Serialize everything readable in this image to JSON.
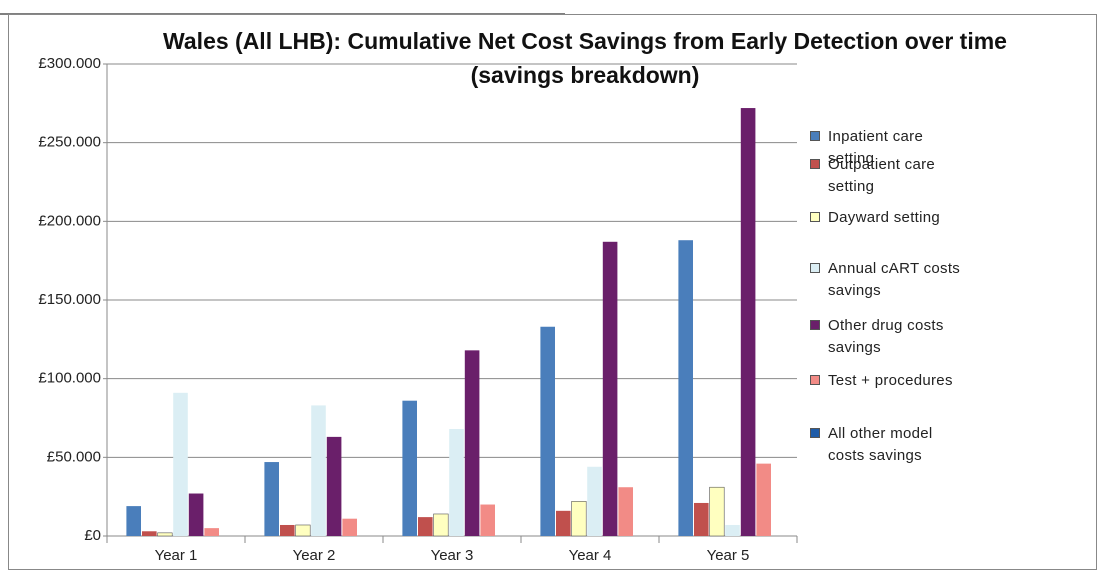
{
  "chart_data": {
    "type": "bar",
    "title": "Wales (All LHB): Cumulative Net Cost Savings from Early Detection over time (savings breakdown)",
    "categories": [
      "Year 1",
      "Year 2",
      "Year 3",
      "Year 4",
      "Year 5"
    ],
    "series": [
      {
        "name": "Inpatient care setting",
        "color": "#4a7ebb",
        "values": [
          19000,
          47000,
          86000,
          133000,
          188000
        ]
      },
      {
        "name": "Outpatient care setting",
        "color": "#c0504d",
        "values": [
          3000,
          7000,
          12000,
          16000,
          21000
        ]
      },
      {
        "name": "Dayward setting",
        "color": "#ffffc0",
        "values": [
          2000,
          7000,
          14000,
          22000,
          31000
        ]
      },
      {
        "name": "Annual cART costs savings",
        "color": "#dbeef4",
        "values": [
          91000,
          83000,
          68000,
          44000,
          7000
        ]
      },
      {
        "name": "Other drug costs savings",
        "color": "#6a1f6a",
        "values": [
          27000,
          63000,
          118000,
          187000,
          272000
        ]
      },
      {
        "name": "Test + procedures",
        "color": "#f28b86",
        "values": [
          5000,
          11000,
          20000,
          31000,
          46000
        ]
      },
      {
        "name": "All other model costs savings",
        "color": "#1f5ca8",
        "values": [
          0,
          0,
          0,
          0,
          0
        ]
      }
    ],
    "ylim": [
      0,
      300000
    ],
    "yticks": [
      {
        "value": 0,
        "label": "£0"
      },
      {
        "value": 50000,
        "label": "£50.000"
      },
      {
        "value": 100000,
        "label": "£100.000"
      },
      {
        "value": 150000,
        "label": "£150.000"
      },
      {
        "value": 200000,
        "label": "£200.000"
      },
      {
        "value": 250000,
        "label": "£250.000"
      },
      {
        "value": 300000,
        "label": "£300.000"
      }
    ],
    "grid": true,
    "legend": "right"
  }
}
